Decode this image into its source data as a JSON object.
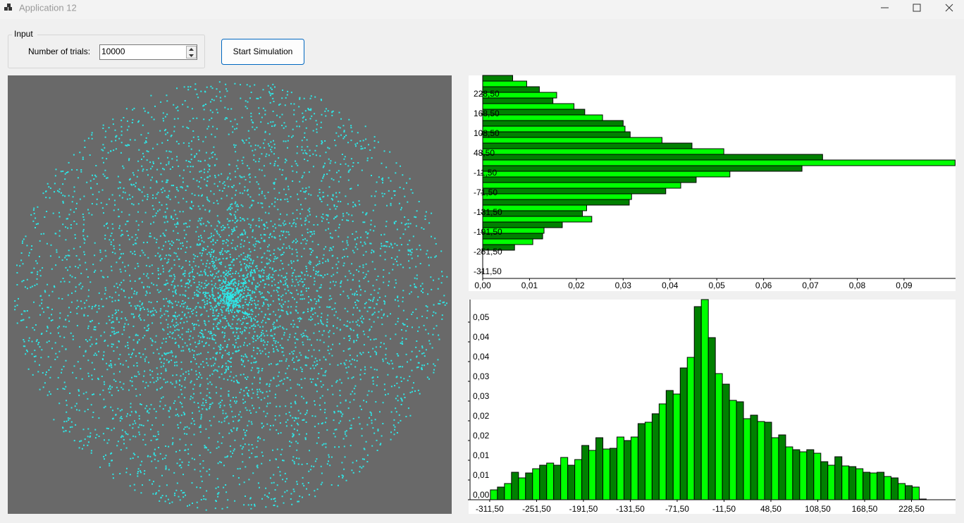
{
  "window": {
    "title": "Application 12"
  },
  "input": {
    "group_label": "Input",
    "trials_label": "Number of trials:",
    "trials_value": "10000"
  },
  "button": {
    "label": "Start Simulation"
  },
  "chart_data": [
    {
      "type": "histogram",
      "orientation": "horizontal",
      "colors": [
        "#008000",
        "#00ff00"
      ],
      "bins": [
        -245.0,
        -227.86,
        -210.72,
        -193.58,
        -176.44,
        -159.3,
        -142.16,
        -125.02,
        -107.88,
        -90.74,
        -73.6,
        -56.46,
        -39.32,
        -22.18,
        -5.04,
        12.1,
        29.24,
        46.38,
        63.52,
        80.66,
        97.8,
        114.94,
        132.08,
        149.22,
        166.36,
        183.5,
        200.64,
        217.78,
        234.92,
        252.06,
        269.2,
        286.34
      ],
      "values": [
        0.0068,
        0.0107,
        0.0128,
        0.0131,
        0.017,
        0.0233,
        0.0213,
        0.0222,
        0.0313,
        0.0318,
        0.0391,
        0.0423,
        0.0456,
        0.0528,
        0.0682,
        0.1009,
        0.0726,
        0.0515,
        0.0447,
        0.0383,
        0.0315,
        0.0304,
        0.03,
        0.0256,
        0.0218,
        0.0195,
        0.015,
        0.0158,
        0.0121,
        0.0094,
        0.0064
      ],
      "xlim": [
        0,
        0.101
      ],
      "xticks": [
        {
          "value": 0,
          "label": "0,00"
        },
        {
          "value": 0.01,
          "label": "0,01"
        },
        {
          "value": 0.02,
          "label": "0,02"
        },
        {
          "value": 0.03,
          "label": "0,03"
        },
        {
          "value": 0.04,
          "label": "0,04"
        },
        {
          "value": 0.05,
          "label": "0,05"
        },
        {
          "value": 0.06,
          "label": "0,06"
        },
        {
          "value": 0.07,
          "label": "0,07"
        },
        {
          "value": 0.08,
          "label": "0,08"
        },
        {
          "value": 0.09,
          "label": "0,09"
        }
      ],
      "ylim": [
        -330.8,
        286.4
      ],
      "yticks": [
        {
          "value": -311.5,
          "label": "-311,50"
        },
        {
          "value": -251.5,
          "label": "-251,50"
        },
        {
          "value": -191.5,
          "label": "-191,50"
        },
        {
          "value": -131.5,
          "label": "-131,50"
        },
        {
          "value": -71.5,
          "label": "-71,50"
        },
        {
          "value": -11.5,
          "label": "-11,50"
        },
        {
          "value": 48.5,
          "label": "48,50"
        },
        {
          "value": 108.5,
          "label": "108,50"
        },
        {
          "value": 168.5,
          "label": "168,50"
        },
        {
          "value": 228.5,
          "label": "228,50"
        }
      ]
    },
    {
      "type": "histogram",
      "orientation": "vertical",
      "colors": [
        "#00ff00",
        "#008000"
      ],
      "bins": [
        -310.6,
        -301.6,
        -292.6,
        -283.6,
        -274.6,
        -265.6,
        -256.6,
        -247.6,
        -238.6,
        -229.6,
        -220.6,
        -211.6,
        -202.6,
        -193.6,
        -184.6,
        -175.6,
        -166.6,
        -157.6,
        -148.6,
        -139.6,
        -130.6,
        -121.6,
        -112.6,
        -103.6,
        -94.6,
        -85.6,
        -76.6,
        -67.6,
        -58.6,
        -49.6,
        -40.6,
        -31.6,
        -22.6,
        -13.6,
        -4.6,
        4.4,
        13.4,
        22.4,
        31.4,
        40.4,
        49.4,
        58.4,
        67.4,
        76.4,
        85.4,
        94.4,
        103.4,
        112.4,
        121.4,
        130.4,
        139.4,
        148.4,
        157.4,
        166.4,
        175.4,
        184.4,
        193.4,
        202.4,
        211.4,
        220.4,
        229.4,
        238.4,
        247.4
      ],
      "values": [
        0.0028,
        0.0036,
        0.0046,
        0.0078,
        0.0062,
        0.0076,
        0.0088,
        0.0098,
        0.0104,
        0.0098,
        0.012,
        0.0098,
        0.0114,
        0.0154,
        0.014,
        0.0176,
        0.0144,
        0.0146,
        0.0178,
        0.0168,
        0.0178,
        0.0216,
        0.022,
        0.0244,
        0.0272,
        0.031,
        0.03,
        0.0374,
        0.0404,
        0.0548,
        0.0568,
        0.046,
        0.0358,
        0.0328,
        0.0282,
        0.0278,
        0.023,
        0.024,
        0.0222,
        0.022,
        0.0176,
        0.0184,
        0.015,
        0.0142,
        0.0136,
        0.0142,
        0.0132,
        0.0108,
        0.0098,
        0.0122,
        0.0096,
        0.0094,
        0.0088,
        0.0078,
        0.0076,
        0.0078,
        0.0066,
        0.0062,
        0.0046,
        0.004,
        0.0036,
        0.0002
      ],
      "xlim": [
        -336.7,
        284.9
      ],
      "xticks": [
        {
          "value": -311.5,
          "label": "-311,50"
        },
        {
          "value": -251.5,
          "label": "-251,50"
        },
        {
          "value": -191.5,
          "label": "-191,50"
        },
        {
          "value": -131.5,
          "label": "-131,50"
        },
        {
          "value": -71.5,
          "label": "-71,50"
        },
        {
          "value": -11.5,
          "label": "-11,50"
        },
        {
          "value": 48.5,
          "label": "48,50"
        },
        {
          "value": 108.5,
          "label": "108,50"
        },
        {
          "value": 168.5,
          "label": "168,50"
        },
        {
          "value": 228.5,
          "label": "228,50"
        }
      ],
      "ylim": [
        0,
        0.0568
      ],
      "yticks": [
        {
          "value": 0,
          "label": "0,00"
        },
        {
          "value": 0.0056,
          "label": "0,01"
        },
        {
          "value": 0.0112,
          "label": "0,01"
        },
        {
          "value": 0.0168,
          "label": "0,02"
        },
        {
          "value": 0.0224,
          "label": "0,02"
        },
        {
          "value": 0.028,
          "label": "0,03"
        },
        {
          "value": 0.0336,
          "label": "0,03"
        },
        {
          "value": 0.0392,
          "label": "0,04"
        },
        {
          "value": 0.0448,
          "label": "0,04"
        },
        {
          "value": 0.0504,
          "label": "0,05"
        }
      ]
    }
  ]
}
